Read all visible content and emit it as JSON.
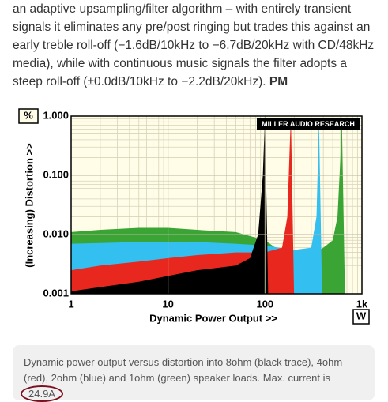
{
  "paragraph": {
    "text": "an adaptive upsampling/filter algorithm – with entirely transient signals it eliminates any pre/post ringing but trades this against an early treble roll-off (−1.6dB/10kHz to −6.7dB/20kHz with CD/48kHz media), while with continuous music signals the filter adopts a steep roll-off (±0.0dB/10kHz to −2.2dB/20kHz).",
    "signature": "PM"
  },
  "chart_data": {
    "type": "area",
    "logo": "MILLER AUDIO RESEARCH",
    "x_label": "Dynamic Power Output >>",
    "y_label": "(Increasing) Distortion >>",
    "x_unit": "W",
    "y_unit": "%",
    "x_log": true,
    "y_log": true,
    "grid": true,
    "minor_grid": true,
    "xlim": [
      1,
      1000
    ],
    "ylim": [
      0.001,
      1
    ],
    "xticks": [
      1,
      10,
      100,
      {
        "value": 1000,
        "label": "1k"
      }
    ],
    "yticks": [
      {
        "value": 0.001,
        "label": "0.001"
      },
      {
        "value": 0.01,
        "label": "0.010"
      },
      {
        "value": 0.1,
        "label": "0.100"
      },
      {
        "value": 1,
        "label": "1.000"
      }
    ],
    "series": [
      {
        "color": "#3aa534",
        "x": [
          1,
          2,
          5,
          10,
          20,
          50,
          100,
          150,
          200,
          300,
          400,
          500,
          560,
          600,
          620
        ],
        "values": [
          0.011,
          0.012,
          0.013,
          0.013,
          0.012,
          0.011,
          0.008,
          0.005,
          0.004,
          0.0045,
          0.006,
          0.008,
          0.02,
          0.2,
          1
        ]
      },
      {
        "color": "#33bfef",
        "x": [
          1,
          2,
          5,
          10,
          20,
          50,
          100,
          200,
          300,
          340,
          355,
          360
        ],
        "values": [
          0.007,
          0.0072,
          0.0075,
          0.0075,
          0.0075,
          0.007,
          0.0065,
          0.0055,
          0.006,
          0.02,
          0.3,
          1
        ]
      },
      {
        "color": "#e8281e",
        "x": [
          1,
          2,
          5,
          10,
          20,
          50,
          100,
          150,
          170,
          180,
          185
        ],
        "values": [
          0.0025,
          0.003,
          0.0035,
          0.004,
          0.0045,
          0.005,
          0.005,
          0.006,
          0.02,
          0.3,
          1
        ]
      },
      {
        "color": "#000000",
        "x": [
          1,
          2,
          5,
          10,
          20,
          50,
          70,
          85,
          95,
          100
        ],
        "values": [
          0.0011,
          0.0013,
          0.0016,
          0.002,
          0.0025,
          0.003,
          0.004,
          0.01,
          0.1,
          1
        ]
      }
    ]
  },
  "caption": {
    "text": "Dynamic power output versus distortion into 8ohm (black trace), 4ohm (red), 2ohm (blue) and 1ohm (green) speaker loads. Max. current is",
    "highlight": "24.9A"
  }
}
